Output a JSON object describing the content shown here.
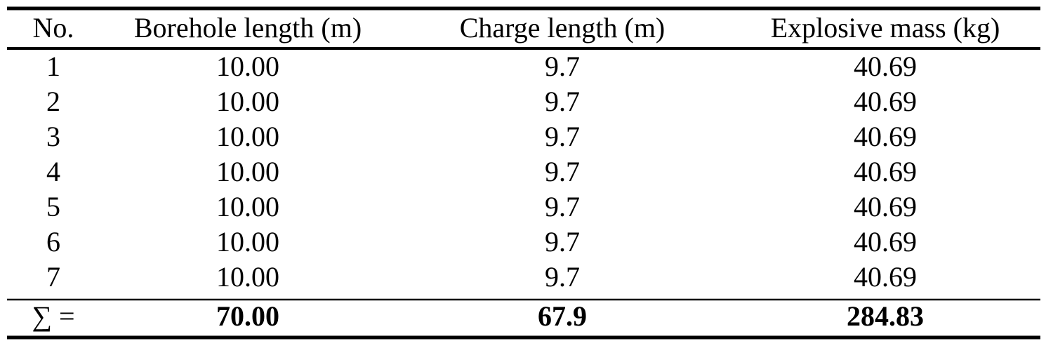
{
  "table": {
    "header": [
      "No.",
      "Borehole length (m)",
      "Charge length (m)",
      "Explosive mass (kg)"
    ],
    "rows": [
      [
        "1",
        "10.00",
        "9.7",
        "40.69"
      ],
      [
        "2",
        "10.00",
        "9.7",
        "40.69"
      ],
      [
        "3",
        "10.00",
        "9.7",
        "40.69"
      ],
      [
        "4",
        "10.00",
        "9.7",
        "40.69"
      ],
      [
        "5",
        "10.00",
        "9.7",
        "40.69"
      ],
      [
        "6",
        "10.00",
        "9.7",
        "40.69"
      ],
      [
        "7",
        "10.00",
        "9.7",
        "40.69"
      ]
    ],
    "total": [
      "∑ =",
      "70.00",
      "67.9",
      "284.83"
    ]
  }
}
